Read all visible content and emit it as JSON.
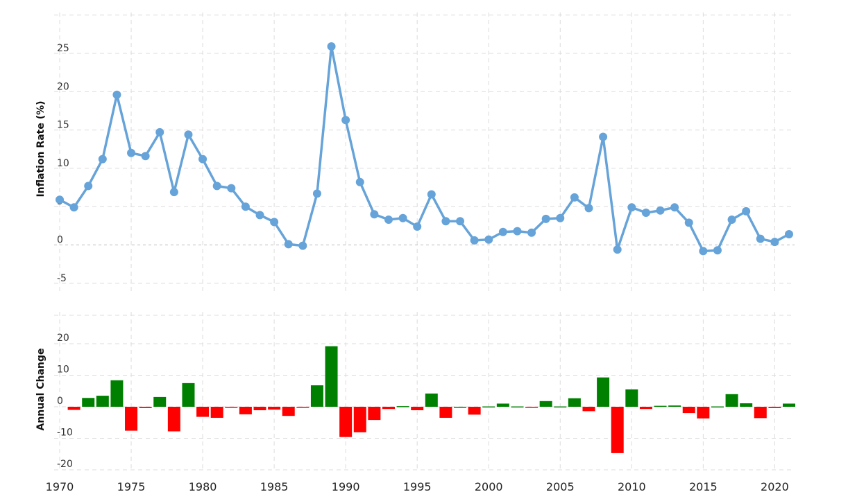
{
  "chart_data": [
    {
      "type": "line",
      "ylabel": "Inflation Rate (%)",
      "ylim": [
        -7,
        30
      ],
      "yticks": [
        -5,
        0,
        5,
        10,
        15,
        20,
        25
      ],
      "xlim": [
        1970,
        2021.5
      ],
      "xticks": [
        1970,
        1975,
        1980,
        1985,
        1990,
        1995,
        2000,
        2005,
        2010,
        2015,
        2020
      ],
      "grid": true,
      "color": "#66a3d9",
      "x": [
        1970,
        1971,
        1972,
        1973,
        1974,
        1975,
        1976,
        1977,
        1978,
        1979,
        1980,
        1981,
        1982,
        1983,
        1984,
        1985,
        1986,
        1987,
        1988,
        1989,
        1990,
        1991,
        1992,
        1993,
        1994,
        1995,
        1996,
        1997,
        1998,
        1999,
        2000,
        2001,
        2002,
        2003,
        2004,
        2005,
        2006,
        2007,
        2008,
        2009,
        2010,
        2011,
        2012,
        2013,
        2014,
        2015,
        2016,
        2017,
        2018,
        2019,
        2020,
        2021
      ],
      "values": [
        5.9,
        4.9,
        7.7,
        11.2,
        19.6,
        12.0,
        11.6,
        14.7,
        6.9,
        14.4,
        11.2,
        7.7,
        7.4,
        5.0,
        3.9,
        3.0,
        0.1,
        -0.1,
        6.7,
        25.9,
        16.3,
        8.2,
        4.0,
        3.3,
        3.5,
        2.4,
        6.6,
        3.1,
        3.1,
        0.6,
        0.7,
        1.7,
        1.8,
        1.6,
        3.4,
        3.5,
        6.2,
        4.8,
        14.1,
        -0.6,
        4.9,
        4.2,
        4.5,
        4.9,
        2.9,
        -0.8,
        -0.7,
        3.3,
        4.4,
        0.8,
        0.4,
        1.4
      ]
    },
    {
      "type": "bar",
      "ylabel": "Annual Change",
      "ylim": [
        -22,
        30
      ],
      "yticks": [
        -20,
        -10,
        0,
        10,
        20
      ],
      "xlim": [
        1970,
        2021.5
      ],
      "grid": true,
      "positive_color": "#008000",
      "negative_color": "#ff0000",
      "x": [
        1971,
        1972,
        1973,
        1974,
        1975,
        1976,
        1977,
        1978,
        1979,
        1980,
        1981,
        1982,
        1983,
        1984,
        1985,
        1986,
        1987,
        1988,
        1989,
        1990,
        1991,
        1992,
        1993,
        1994,
        1995,
        1996,
        1997,
        1998,
        1999,
        2000,
        2001,
        2002,
        2003,
        2004,
        2005,
        2006,
        2007,
        2008,
        2009,
        2010,
        2011,
        2012,
        2013,
        2014,
        2015,
        2016,
        2017,
        2018,
        2019,
        2020,
        2021
      ],
      "values": [
        -1.0,
        2.8,
        3.5,
        8.4,
        -7.6,
        -0.4,
        3.1,
        -7.8,
        7.5,
        -3.2,
        -3.5,
        -0.3,
        -2.4,
        -1.1,
        -0.9,
        -2.9,
        -0.2,
        6.8,
        19.2,
        -9.6,
        -8.1,
        -4.2,
        -0.7,
        0.2,
        -1.1,
        4.2,
        -3.5,
        0.0,
        -2.5,
        0.1,
        1.0,
        0.1,
        -0.2,
        1.8,
        0.1,
        2.7,
        -1.4,
        9.3,
        -14.7,
        5.5,
        -0.7,
        0.3,
        0.4,
        -2.0,
        -3.7,
        0.1,
        4.0,
        1.1,
        -3.6,
        -0.4,
        1.0
      ]
    }
  ]
}
